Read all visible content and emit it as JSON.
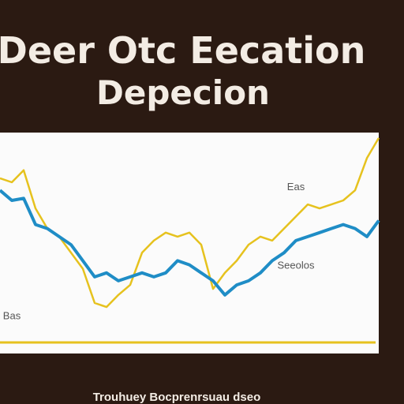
{
  "chart_data": {
    "type": "line",
    "title": "Deer Otc Eecation",
    "subtitle": "Depecion",
    "caption": "Trouhuey Bocprenrsuau dseo",
    "x": [
      0,
      1,
      2,
      3,
      4,
      5,
      6,
      7,
      8,
      9,
      10,
      11,
      12,
      13,
      14,
      15,
      16,
      17,
      18,
      19,
      20,
      21,
      22,
      23,
      24,
      25,
      26,
      27,
      28,
      29,
      30,
      31,
      32
    ],
    "xlim": [
      0,
      32
    ],
    "ylim": [
      0,
      100
    ],
    "series": [
      {
        "name": "Blue",
        "color": "#1f8dc6",
        "values": [
          76,
          71,
          72,
          59,
          57,
          53,
          49,
          41,
          33,
          35,
          31,
          33,
          35,
          33,
          35,
          41,
          39,
          35,
          31,
          24,
          29,
          31,
          35,
          41,
          45,
          51,
          53,
          55,
          57,
          59,
          57,
          53,
          61
        ]
      },
      {
        "name": "Yellow",
        "color": "#e6c21e",
        "values": [
          82,
          80,
          86,
          67,
          57,
          53,
          45,
          37,
          20,
          18,
          24,
          29,
          45,
          51,
          55,
          53,
          55,
          49,
          27,
          35,
          41,
          49,
          53,
          51,
          57,
          63,
          69,
          67,
          69,
          71,
          76,
          92,
          102
        ]
      }
    ],
    "annotations": [
      {
        "text": "Eas",
        "x": 25,
        "y": 76
      },
      {
        "text": "Seeolos",
        "x": 25,
        "y": 37
      },
      {
        "text": "Bas",
        "x": 1,
        "y": 12
      }
    ]
  }
}
